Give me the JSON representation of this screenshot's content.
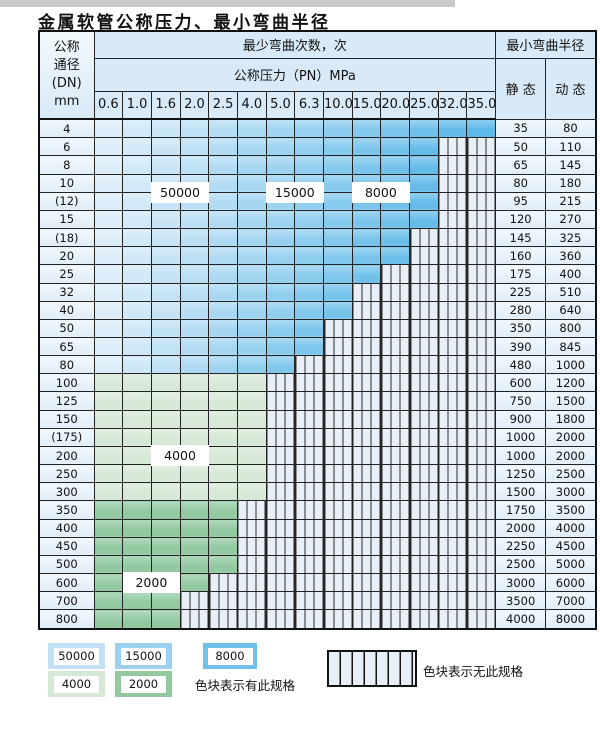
{
  "title": "金属软管公称压力、最小弯曲半径",
  "table": {
    "header": {
      "dn_lines": [
        "公称",
        "通径",
        "(DN)",
        "mm"
      ],
      "min_cycles": "最少弯曲次数，次",
      "pressure": "公称压力（PN）MPa",
      "min_radius": "最小弯曲半径",
      "static": "静 态",
      "dynamic": "动 态"
    },
    "pressures": [
      "0.6",
      "1.0",
      "1.6",
      "2.0",
      "2.5",
      "4.0",
      "5.0",
      "6.3",
      "10.0",
      "15.0",
      "20.0",
      "25.0",
      "32.0",
      "35.0"
    ],
    "rows": [
      {
        "dn": "4",
        "last": 13,
        "zone": "blue",
        "static": "35",
        "dynamic": "80"
      },
      {
        "dn": "6",
        "last": 11,
        "zone": "blue",
        "static": "50",
        "dynamic": "110"
      },
      {
        "dn": "8",
        "last": 11,
        "zone": "blue",
        "static": "65",
        "dynamic": "145"
      },
      {
        "dn": "10",
        "last": 11,
        "zone": "blue",
        "static": "80",
        "dynamic": "180"
      },
      {
        "dn": "(12)",
        "last": 11,
        "zone": "blue",
        "static": "95",
        "dynamic": "215"
      },
      {
        "dn": "15",
        "last": 11,
        "zone": "blue",
        "static": "120",
        "dynamic": "270"
      },
      {
        "dn": "(18)",
        "last": 10,
        "zone": "blue",
        "static": "145",
        "dynamic": "325"
      },
      {
        "dn": "20",
        "last": 10,
        "zone": "blue",
        "static": "160",
        "dynamic": "360"
      },
      {
        "dn": "25",
        "last": 9,
        "zone": "blue",
        "static": "175",
        "dynamic": "400"
      },
      {
        "dn": "32",
        "last": 8,
        "zone": "blue",
        "static": "225",
        "dynamic": "510"
      },
      {
        "dn": "40",
        "last": 8,
        "zone": "blue",
        "static": "280",
        "dynamic": "640"
      },
      {
        "dn": "50",
        "last": 7,
        "zone": "blue",
        "static": "350",
        "dynamic": "800"
      },
      {
        "dn": "65",
        "last": 7,
        "zone": "blue",
        "static": "390",
        "dynamic": "845"
      },
      {
        "dn": "80",
        "last": 6,
        "zone": "blue",
        "static": "480",
        "dynamic": "1000"
      },
      {
        "dn": "100",
        "last": 5,
        "zone": "green_light",
        "static": "600",
        "dynamic": "1200"
      },
      {
        "dn": "125",
        "last": 5,
        "zone": "green_light",
        "static": "750",
        "dynamic": "1500"
      },
      {
        "dn": "150",
        "last": 5,
        "zone": "green_light",
        "static": "900",
        "dynamic": "1800"
      },
      {
        "dn": "(175)",
        "last": 5,
        "zone": "green_light",
        "static": "1000",
        "dynamic": "2000"
      },
      {
        "dn": "200",
        "last": 5,
        "zone": "green_light",
        "static": "1000",
        "dynamic": "2000"
      },
      {
        "dn": "250",
        "last": 5,
        "zone": "green_light",
        "static": "1250",
        "dynamic": "2500"
      },
      {
        "dn": "300",
        "last": 5,
        "zone": "green_light",
        "static": "1500",
        "dynamic": "3000"
      },
      {
        "dn": "350",
        "last": 4,
        "zone": "green_mid",
        "static": "1750",
        "dynamic": "3500"
      },
      {
        "dn": "400",
        "last": 4,
        "zone": "green_mid",
        "static": "2000",
        "dynamic": "4000"
      },
      {
        "dn": "450",
        "last": 4,
        "zone": "green_mid",
        "static": "2250",
        "dynamic": "4500"
      },
      {
        "dn": "500",
        "last": 4,
        "zone": "green_mid",
        "static": "2500",
        "dynamic": "5000"
      },
      {
        "dn": "600",
        "last": 3,
        "zone": "green_mid",
        "static": "3000",
        "dynamic": "6000"
      },
      {
        "dn": "700",
        "last": 2,
        "zone": "green_mid",
        "static": "3500",
        "dynamic": "7000"
      },
      {
        "dn": "800",
        "last": 2,
        "zone": "green_mid",
        "static": "4000",
        "dynamic": "8000"
      }
    ],
    "zone_labels": [
      {
        "text": "50000",
        "row": 3,
        "straddle": true,
        "col_start": 2,
        "col_end": 3
      },
      {
        "text": "15000",
        "row": 3,
        "straddle": true,
        "col_start": 6,
        "col_end": 7
      },
      {
        "text": "8000",
        "row": 3,
        "straddle": true,
        "col_start": 9,
        "col_end": 10
      },
      {
        "text": "4000",
        "row": 18,
        "straddle": false,
        "col_start": 2,
        "col_end": 3
      },
      {
        "text": "2000",
        "row": 25,
        "straddle": false,
        "col_start": 1,
        "col_end": 2
      }
    ]
  },
  "legend": {
    "items": [
      {
        "label": "50000",
        "color": "#c2e1f4"
      },
      {
        "label": "15000",
        "color": "#9bd1ef"
      },
      {
        "label": "8000",
        "color": "#6fc0ea"
      },
      {
        "label": "4000",
        "color": "#d6e8d6"
      },
      {
        "label": "2000",
        "color": "#92c9a1"
      }
    ],
    "available_note": "色块表示有此规格",
    "unavailable_note": "色块表示无此规格"
  },
  "colors": {
    "header_bg": "#d8eaf7",
    "blue_light": "#dcedf9",
    "blue_dark": "#5bb8e7",
    "green_light": "#d6e8d6",
    "green_mid": "#92c9a1",
    "hatch_bg": "#e9eff7",
    "grid_line": "#222222"
  }
}
